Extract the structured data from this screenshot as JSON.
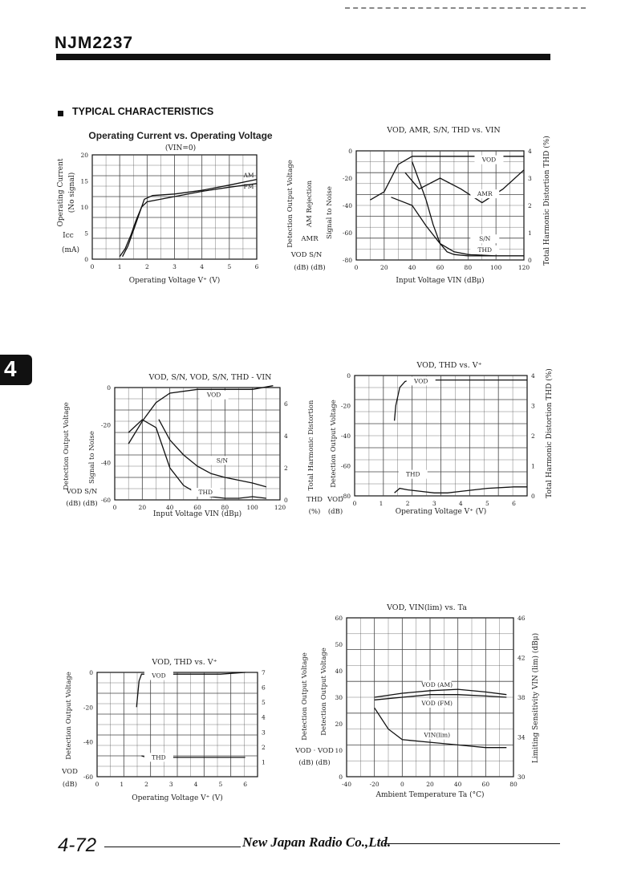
{
  "header": {
    "part_number": "NJM2237",
    "section_title": "TYPICAL CHARACTERISTICS",
    "tab_label": "4"
  },
  "footer": {
    "page_number": "4-72",
    "company": "New Japan Radio Co.,Ltd."
  },
  "colors": {
    "ink": "#111111",
    "grid": "#444444",
    "paper": "#ffffff"
  },
  "chart_data": [
    {
      "id": "c1",
      "type": "line",
      "title": "Operating Current vs. Operating Voltage",
      "subtitle": "(VIN=0)",
      "xlabel": "Operating Voltage  V⁺  (V)",
      "ylabel_left": [
        "Operating Current",
        "(No signal)",
        "Icc",
        "(mA)"
      ],
      "xlim": [
        0,
        6
      ],
      "ylim": [
        0,
        20
      ],
      "x_ticks": [
        0,
        1,
        2,
        3,
        4,
        5,
        6
      ],
      "y_ticks": [
        0,
        5,
        10,
        15,
        20
      ],
      "grid": true,
      "series": [
        {
          "name": "AM",
          "x": [
            1.1,
            1.3,
            1.5,
            1.7,
            1.9,
            2.2,
            3,
            4,
            5,
            6
          ],
          "y": [
            0.5,
            2.5,
            5.5,
            8.5,
            11.5,
            12.2,
            12.5,
            13.2,
            14.2,
            15.3
          ]
        },
        {
          "name": "FM",
          "x": [
            1.0,
            1.2,
            1.4,
            1.6,
            1.8,
            2.0,
            3,
            4,
            5,
            6
          ],
          "y": [
            0.5,
            2,
            4.5,
            7.5,
            10,
            11,
            12,
            13,
            13.8,
            14.5
          ]
        }
      ]
    },
    {
      "id": "c2",
      "type": "line",
      "title": "VOD, AMR, S/N, THD vs. VIN",
      "xlabel": "Input Voltage  VIN (dBμ)",
      "ylabel_left": [
        "Detection Output Voltage",
        "AM Rejection",
        "Signal to Noise",
        "AMR",
        "VOD  S/N",
        "(dB)  (dB)"
      ],
      "ylabel_right": "Total Harmonic Distortion  THD (%)",
      "xlim": [
        0,
        120
      ],
      "ylim": [
        -80,
        0
      ],
      "y2lim": [
        0,
        4
      ],
      "x_ticks": [
        0,
        20,
        40,
        60,
        80,
        100,
        120
      ],
      "y_ticks": [
        0,
        -20,
        -40,
        -60,
        -80
      ],
      "y2_ticks": [
        0,
        1,
        2,
        3,
        4
      ],
      "grid": true,
      "series": [
        {
          "name": "VOD",
          "x": [
            10,
            20,
            30,
            40,
            60,
            80,
            100,
            120
          ],
          "y": [
            -36,
            -30,
            -10,
            -4,
            -4,
            -4,
            -4,
            -4
          ]
        },
        {
          "name": "AMR",
          "x": [
            35,
            40,
            45,
            60,
            75,
            90,
            105,
            120
          ],
          "y": [
            -16,
            -22,
            -28,
            -20,
            -28,
            -38,
            -28,
            -14
          ]
        },
        {
          "name": "S/N",
          "x": [
            25,
            40,
            50,
            60,
            70,
            80,
            100,
            120
          ],
          "y": [
            -34,
            -40,
            -55,
            -68,
            -74,
            -76,
            -77,
            -77
          ]
        },
        {
          "name": "THD",
          "x": [
            40,
            50,
            55,
            60,
            65,
            70,
            80,
            120
          ],
          "y2": [
            3.6,
            2.2,
            1.3,
            0.6,
            0.3,
            0.2,
            0.15,
            0.15
          ]
        }
      ]
    },
    {
      "id": "c3",
      "type": "line",
      "title": "VOD, S/N,  VOD, S/N, THD - VIN",
      "xlabel": "Input Voltage  VIN (dBμ)",
      "ylabel_left": [
        "Detection Output Voltage",
        "Signal to Noise",
        "VOD  S/N",
        "(dB)  (dB)"
      ],
      "ylabel_right": [
        "Total Harmonic Distortion",
        "THD",
        "(%)"
      ],
      "xlim": [
        0,
        120
      ],
      "ylim": [
        -60,
        0
      ],
      "y2lim": [
        0,
        7
      ],
      "x_ticks": [
        0,
        20,
        40,
        60,
        80,
        100,
        120
      ],
      "y_ticks": [
        0,
        -20,
        -40,
        -60
      ],
      "y2_ticks": [
        0,
        2,
        4,
        6
      ],
      "grid": true,
      "series": [
        {
          "name": "VOD",
          "x": [
            10,
            20,
            30,
            40,
            60,
            80,
            100,
            115
          ],
          "y": [
            -30,
            -18,
            -8,
            -3,
            -1,
            -1,
            -1,
            1
          ]
        },
        {
          "name": "S/N",
          "x": [
            32,
            40,
            50,
            60,
            70,
            80,
            100,
            110
          ],
          "y": [
            -17,
            -28,
            -36,
            -42,
            -46,
            -48,
            -51,
            -53
          ]
        },
        {
          "name": "THD",
          "x": [
            10,
            20,
            30,
            40,
            50,
            60,
            70,
            80,
            90,
            100,
            110
          ],
          "y2": [
            4.2,
            5.0,
            4.5,
            2.0,
            0.9,
            0.4,
            0.2,
            0.1,
            0.1,
            0.2,
            0.1
          ]
        }
      ]
    },
    {
      "id": "c4",
      "type": "line",
      "title": "VOD, THD vs. V⁺",
      "xlabel": "Operating Voltage  V⁺  (V)",
      "ylabel_left": [
        "Detection Output Voltage",
        "VOD",
        "(dB)"
      ],
      "ylabel_right": "Total Harmonic Distortion  THD (%)",
      "xlim": [
        0,
        6.5
      ],
      "ylim": [
        -80,
        0
      ],
      "y2lim": [
        0,
        4
      ],
      "x_ticks": [
        0,
        1,
        2,
        3,
        4,
        5,
        6
      ],
      "y_ticks": [
        0,
        -20,
        -40,
        -60,
        -80
      ],
      "y2_ticks": [
        0,
        1,
        2,
        3,
        4
      ],
      "grid": true,
      "series": [
        {
          "name": "VOD",
          "x": [
            1.5,
            1.55,
            1.7,
            1.9,
            2.1,
            2.5,
            3.5,
            4.5,
            5.5,
            6.5
          ],
          "y": [
            -30,
            -20,
            -8,
            -4,
            -3,
            -3,
            -3,
            -3,
            -3,
            -3
          ]
        },
        {
          "name": "THD",
          "x": [
            1.5,
            1.7,
            2.0,
            2.5,
            3.0,
            3.5,
            4.0,
            5.0,
            6.0,
            6.5
          ],
          "y2": [
            0.1,
            0.25,
            0.2,
            0.15,
            0.1,
            0.1,
            0.15,
            0.25,
            0.3,
            0.3
          ]
        }
      ]
    },
    {
      "id": "c5",
      "type": "line",
      "title": "VOD, THD vs. V⁺",
      "xlabel": "Operating Voltage  V⁺  (V)",
      "ylabel_left": [
        "Detection Output Voltage",
        "VOD",
        "(dB)"
      ],
      "xlim": [
        0,
        6.5
      ],
      "ylim": [
        -60,
        0
      ],
      "y2lim": [
        0,
        7
      ],
      "x_ticks": [
        0,
        1,
        2,
        3,
        4,
        5,
        6
      ],
      "y_ticks": [
        0,
        -20,
        -40,
        -60
      ],
      "y2_ticks": [
        1,
        2,
        3,
        4,
        5,
        6,
        7
      ],
      "grid": true,
      "series": [
        {
          "name": "VOD",
          "x": [
            1.6,
            1.7,
            1.8,
            2.0,
            3,
            4,
            5,
            6
          ],
          "y": [
            -20,
            -5,
            -1,
            -1,
            -1,
            -1,
            -1,
            0
          ]
        },
        {
          "name": "THD",
          "x": [
            1.8,
            2.0,
            3,
            4,
            5,
            6
          ],
          "y2": [
            1.4,
            1.3,
            1.3,
            1.3,
            1.3,
            1.3
          ]
        }
      ]
    },
    {
      "id": "c6",
      "type": "line",
      "title": "VOD, VIN(lim) vs. Ta",
      "xlabel": "Ambient Temperature  Ta (°C)",
      "ylabel_left": [
        "Detection Output Voltage",
        "Detection Output Voltage",
        "VOD · VOD",
        "(dB)  (dB)"
      ],
      "ylabel_right": "Limiting Sensitivity  VIN (lim) (dBμ)",
      "xlim": [
        -40,
        80
      ],
      "ylim": [
        0,
        60
      ],
      "y2lim": [
        30,
        46
      ],
      "x_ticks": [
        -40,
        -20,
        0,
        20,
        40,
        60,
        80
      ],
      "y_ticks": [
        0,
        10,
        20,
        30,
        40,
        50,
        60
      ],
      "y2_ticks": [
        30,
        34,
        38,
        42,
        46
      ],
      "grid": true,
      "series": [
        {
          "name": "VOD (AM)",
          "x": [
            -20,
            0,
            20,
            40,
            60,
            75
          ],
          "y": [
            30,
            31.5,
            32.5,
            33,
            32,
            31
          ]
        },
        {
          "name": "VOD (FM)",
          "x": [
            -20,
            0,
            20,
            40,
            60,
            75
          ],
          "y": [
            29,
            30,
            31,
            31,
            30.5,
            30
          ]
        },
        {
          "name": "VIN(lim)",
          "x": [
            -20,
            -10,
            0,
            20,
            40,
            60,
            75
          ],
          "y": [
            26,
            18,
            14,
            13,
            12,
            11,
            11
          ]
        }
      ]
    }
  ]
}
